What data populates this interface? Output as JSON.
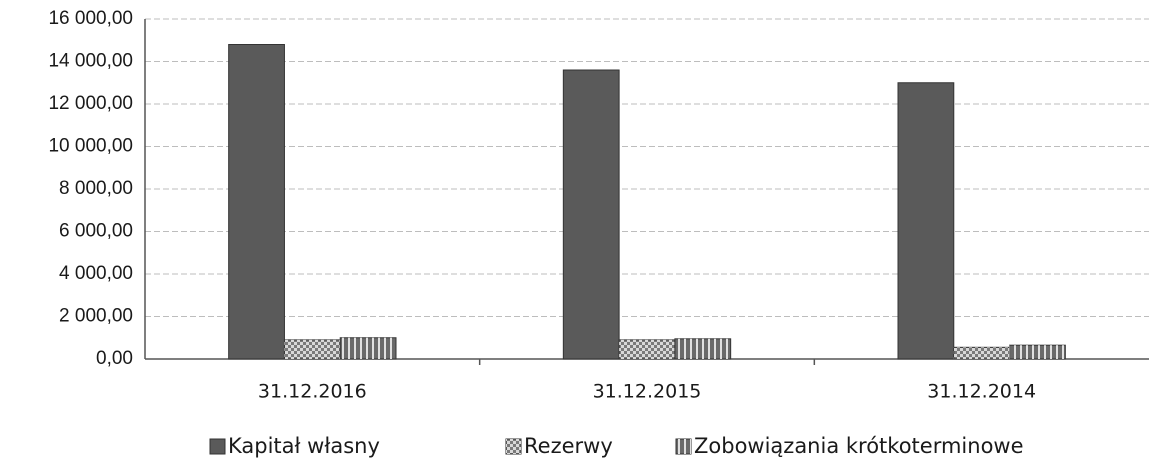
{
  "chart_data": {
    "type": "bar",
    "categories": [
      "31.12.2016",
      "31.12.2015",
      "31.12.2014"
    ],
    "series": [
      {
        "name": "Kapitał własny",
        "color": "#5a5a5a",
        "values": [
          14800,
          13600,
          13000
        ]
      },
      {
        "name": "Rezerwy",
        "color": "#7a7a7a",
        "values": [
          900,
          900,
          550
        ]
      },
      {
        "name": "Zobowiązania krótkoterminowe",
        "color": "#6a6a6a",
        "values": [
          1000,
          950,
          650
        ]
      }
    ],
    "ylim": [
      0,
      16000
    ],
    "yticks": [
      {
        "value": 0,
        "label": "0,00"
      },
      {
        "value": 2000,
        "label": "2 000,00"
      },
      {
        "value": 4000,
        "label": "4 000,00"
      },
      {
        "value": 6000,
        "label": "6 000,00"
      },
      {
        "value": 8000,
        "label": "8 000,00"
      },
      {
        "value": 10000,
        "label": "10 000,00"
      },
      {
        "value": 12000,
        "label": "12 000,00"
      },
      {
        "value": 14000,
        "label": "14 000,00"
      },
      {
        "value": 16000,
        "label": "16 000,00"
      }
    ],
    "grid": true,
    "legend": "bottom"
  }
}
